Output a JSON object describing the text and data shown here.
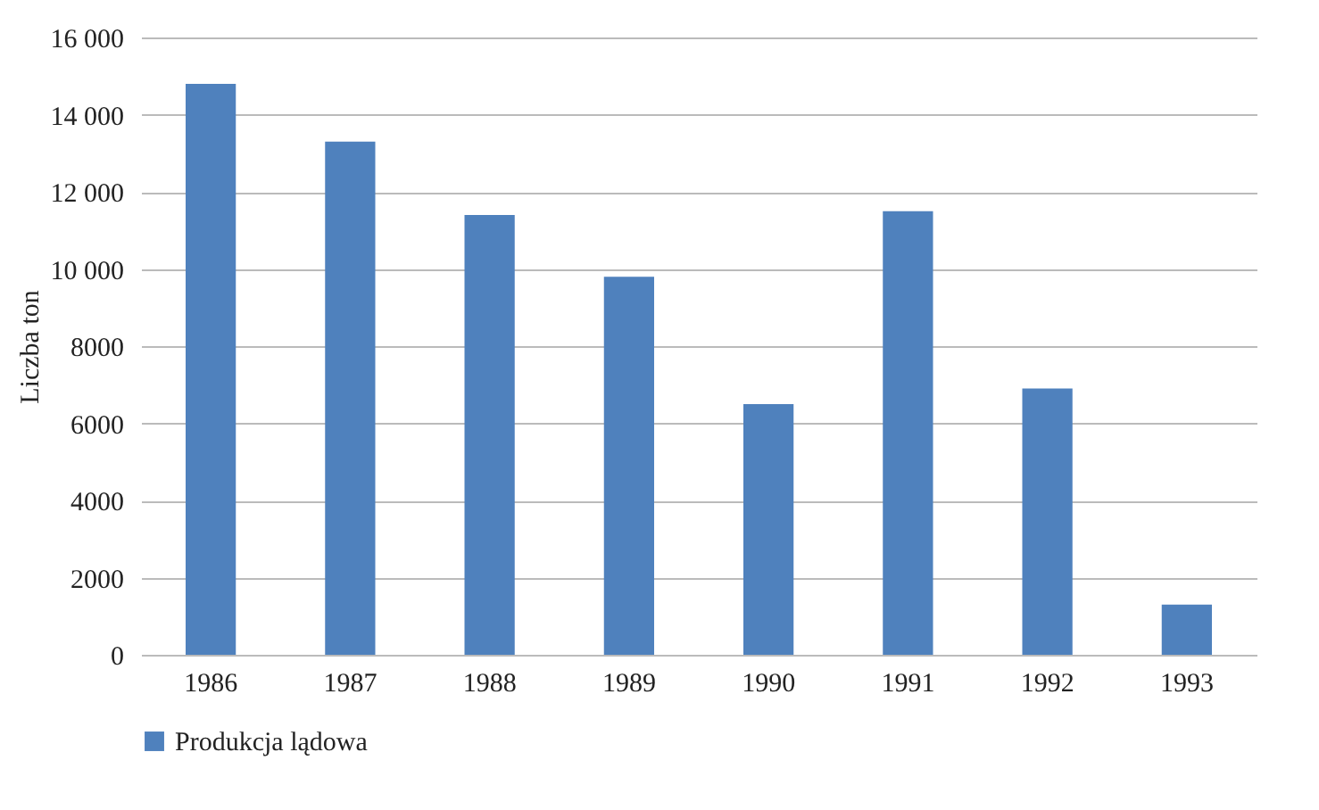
{
  "chart_data": {
    "type": "bar",
    "ylabel": "Liczba ton",
    "categories": [
      "1986",
      "1987",
      "1988",
      "1989",
      "1990",
      "1991",
      "1992",
      "1993"
    ],
    "series": [
      {
        "name": "Produkcja lądowa",
        "color": "#4f81bd",
        "values": [
          14800,
          13300,
          11400,
          9800,
          6500,
          11500,
          6900,
          1300
        ]
      }
    ],
    "ylim": [
      0,
      16000
    ],
    "yticks": [
      0,
      2000,
      4000,
      6000,
      8000,
      {
        "value": 10000,
        "label": "10 000"
      },
      {
        "value": 12000,
        "label": "12 000"
      },
      {
        "value": 14000,
        "label": "14 000"
      },
      {
        "value": 16000,
        "label": "16 000"
      }
    ],
    "grid": "y",
    "legend": "bottom"
  }
}
